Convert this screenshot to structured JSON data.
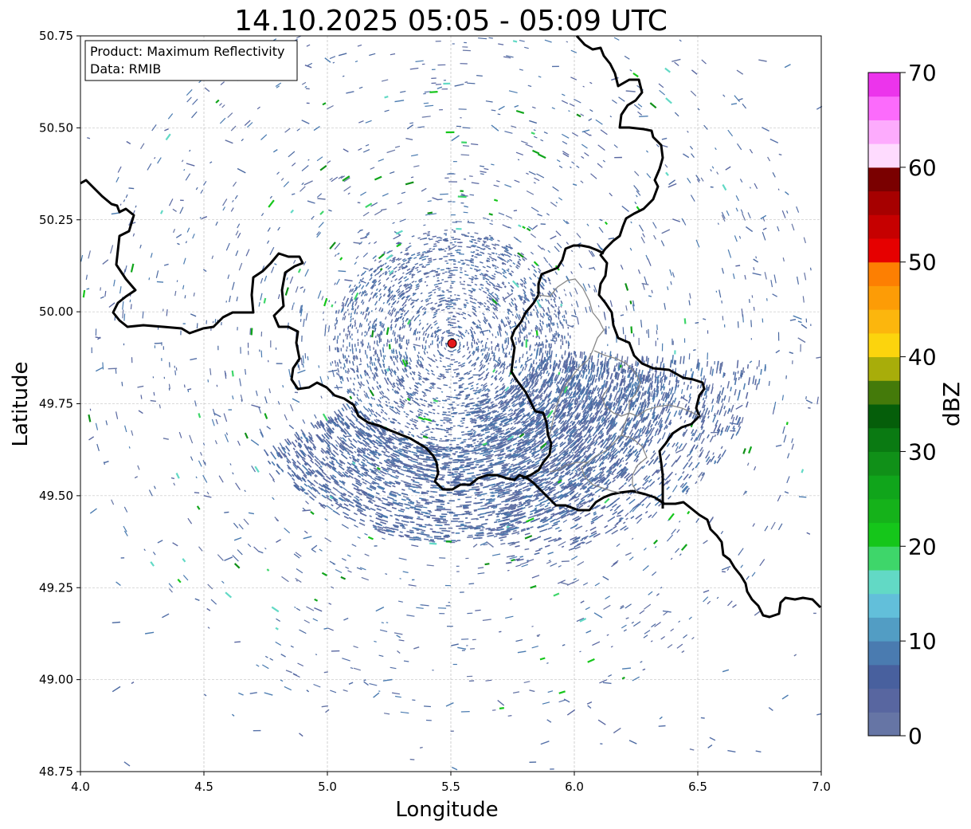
{
  "map": {
    "title": "14.10.2025 05:05 - 05:09 UTC",
    "xlabel": "Longitude",
    "ylabel": "Latitude",
    "xlim": [
      4.0,
      7.0
    ],
    "ylim": [
      48.75,
      50.75
    ],
    "x_ticks": [
      "4.0",
      "4.5",
      "5.0",
      "5.5",
      "6.0",
      "6.5",
      "7.0"
    ],
    "y_ticks": [
      "50.75",
      "50.50",
      "50.25",
      "50.00",
      "49.75",
      "49.50",
      "49.25",
      "49.00",
      "48.75"
    ],
    "grid": true,
    "info_box": {
      "product": "Product: Maximum Reflectivity",
      "source": "Data: RMIB"
    },
    "radar_site": {
      "lon": 5.505,
      "lat": 49.914,
      "color": "#e41a1c"
    }
  },
  "colorbar": {
    "label": "dBZ",
    "ticks": [
      "0",
      "10",
      "20",
      "30",
      "40",
      "50",
      "60",
      "70"
    ],
    "range": [
      0,
      70
    ],
    "colors": [
      "#6675a5",
      "#5866a0",
      "#48609e",
      "#4a7bb0",
      "#529dc4",
      "#62bfda",
      "#62d9c5",
      "#3ed66a",
      "#15c61a",
      "#15b21a",
      "#10a51b",
      "#109018",
      "#0a7a12",
      "#055e0a",
      "#447a0a",
      "#a8ad0a",
      "#fcd40d",
      "#fcb60d",
      "#fd9c06",
      "#fd7f02",
      "#e60000",
      "#c60000",
      "#a60000",
      "#7a0000",
      "#fedbfe",
      "#fdabfd",
      "#fc6bfc",
      "#ec34ec"
    ]
  }
}
